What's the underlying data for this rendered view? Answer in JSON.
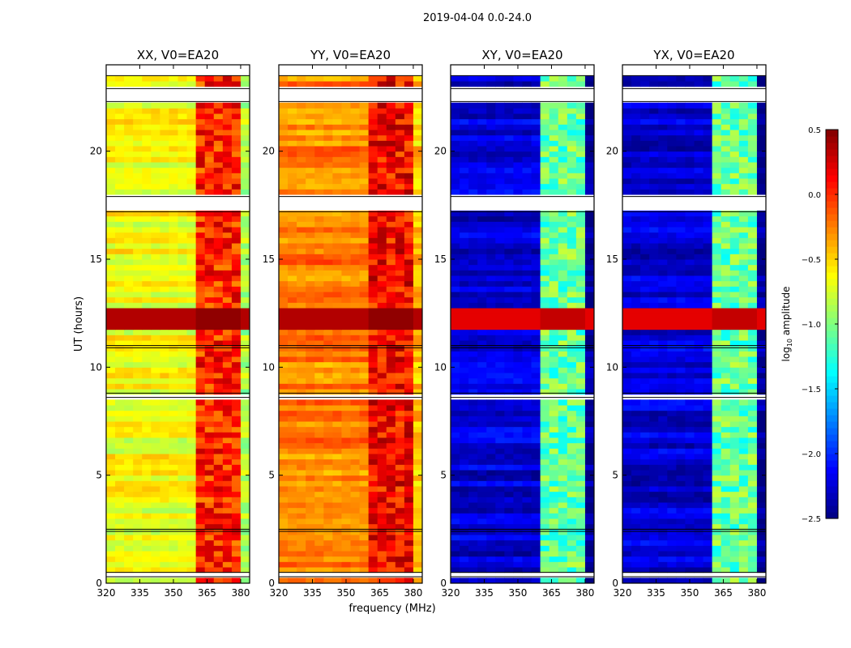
{
  "chart_data": {
    "type": "heatmap",
    "title": "2019-04-04 0.0-24.0",
    "xlabel": "frequency (MHz)",
    "ylabel": "UT (hours)",
    "xlim": [
      320,
      384
    ],
    "ylim": [
      0,
      24
    ],
    "xticks": [
      "320",
      "335",
      "350",
      "365",
      "380"
    ],
    "yticks": [
      "0",
      "5",
      "10",
      "15",
      "20"
    ],
    "colorbar": {
      "label": "log10 amplitude",
      "label_main": "log",
      "label_sub": "10",
      "label_rest": " amplitude",
      "range": [
        -2.5,
        0.5
      ],
      "ticks": [
        "0.5",
        "0.0",
        "−0.5",
        "−1.0",
        "−1.5",
        "−2.0",
        "−2.5"
      ],
      "tick_values": [
        0.5,
        0.0,
        -0.5,
        -1.0,
        -1.5,
        -2.0,
        -2.5
      ],
      "colormap": "jet"
    },
    "rfi_band_mhz": [
      362,
      380
    ],
    "hot_hours": [
      11.8,
      12.8
    ],
    "flagged_hours": [
      [
        0.3,
        0.5
      ],
      [
        2.4,
        2.5
      ],
      [
        8.6,
        8.8
      ],
      [
        10.9,
        11.0
      ],
      [
        17.2,
        17.9
      ],
      [
        22.3,
        22.9
      ],
      [
        23.5,
        24.0
      ]
    ],
    "panels": [
      {
        "title": "XX, V0=EA20",
        "base_log_amp": -0.65,
        "band_log_amp": -0.1,
        "hot_log_amp": 0.45
      },
      {
        "title": "YY, V0=EA20",
        "base_log_amp": -0.25,
        "band_log_amp": 0.0,
        "hot_log_amp": 0.45
      },
      {
        "title": "XY, V0=EA20",
        "base_log_amp": -2.25,
        "band_log_amp": -1.2,
        "hot_log_amp": 0.3
      },
      {
        "title": "YX, V0=EA20",
        "base_log_amp": -2.25,
        "band_log_amp": -1.2,
        "hot_log_amp": 0.3
      }
    ]
  }
}
